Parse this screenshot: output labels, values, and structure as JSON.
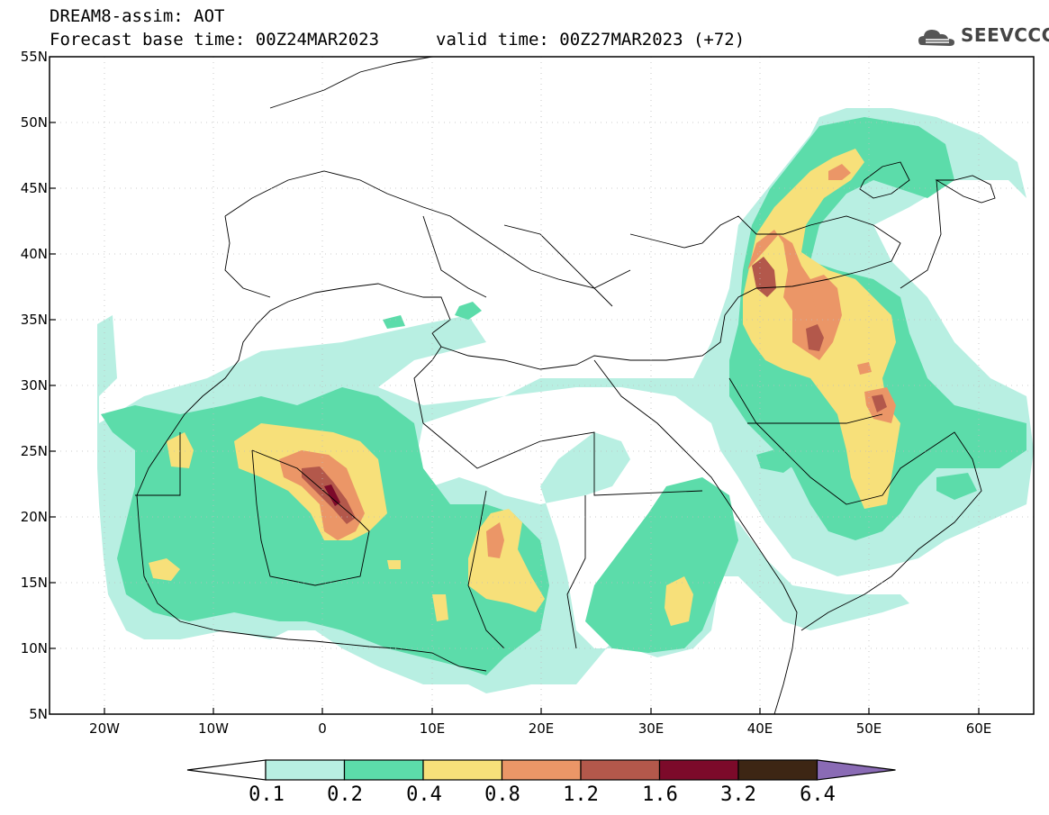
{
  "header": {
    "title": "DREAM8-assim: AOT",
    "base_time_label": "Forecast base time: 00Z24MAR2023",
    "valid_time_label": "valid time: 00Z27MAR2023 (+72)"
  },
  "logo": {
    "text": "SEEVCCC",
    "icon": "cloud-logo-icon"
  },
  "map": {
    "lon_range": [
      -25,
      65
    ],
    "lat_range": [
      5,
      55
    ],
    "lat_labels": [
      "55N",
      "50N",
      "45N",
      "40N",
      "35N",
      "30N",
      "25N",
      "20N",
      "15N",
      "10N",
      "5N"
    ],
    "lon_labels": [
      "20W",
      "10W",
      "0",
      "10E",
      "20E",
      "30E",
      "40E",
      "50E",
      "60E"
    ]
  },
  "colorbar": {
    "labels": [
      "0.1",
      "0.2",
      "0.4",
      "0.8",
      "1.2",
      "1.6",
      "3.2",
      "6.4"
    ],
    "colors": [
      "#ffffff",
      "#b8efe2",
      "#5cdcaa",
      "#f7e07a",
      "#eb9667",
      "#b3584b",
      "#7c0a2a",
      "#3d2614",
      "#8a6bb5"
    ]
  }
}
